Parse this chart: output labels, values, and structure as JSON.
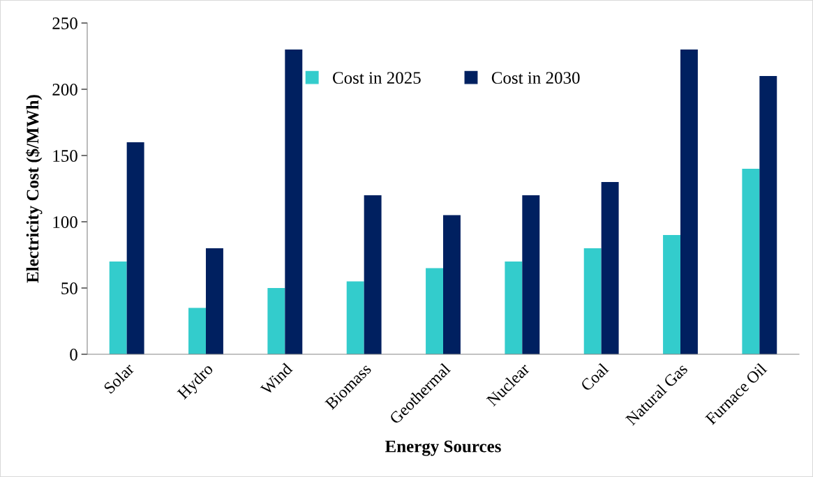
{
  "chart_data": {
    "type": "bar",
    "xlabel": "Energy Sources",
    "ylabel": "Electricity Cost ($/MWh)",
    "categories": [
      "Solar",
      "Hydro",
      "Wind",
      "Biomass",
      "Geothermal",
      "Nuclear",
      "Coal",
      "Natural Gas",
      "Furnace Oil"
    ],
    "series": [
      {
        "name": "Cost in 2025",
        "color": "#33cccc",
        "values": [
          70,
          35,
          50,
          55,
          65,
          70,
          80,
          90,
          140
        ]
      },
      {
        "name": "Cost in 2030",
        "color": "#002060",
        "values": [
          160,
          80,
          230,
          120,
          105,
          120,
          130,
          230,
          210
        ]
      }
    ],
    "ylim": [
      0,
      250
    ],
    "yticks": [
      0,
      50,
      100,
      150,
      200,
      250
    ],
    "grid": false,
    "legend": "top"
  }
}
